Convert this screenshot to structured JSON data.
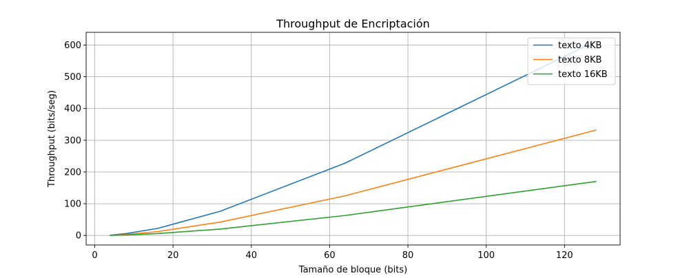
{
  "chart_data": {
    "type": "line",
    "title": "Throughput de Encriptación",
    "xlabel": "Tamaño de bloque (bits)",
    "ylabel": "Throughput (bits/seg)",
    "xlim": [
      -2.2,
      134.2
    ],
    "ylim": [
      -30,
      640
    ],
    "xticks": [
      0,
      20,
      40,
      60,
      80,
      100,
      120
    ],
    "yticks": [
      0,
      100,
      200,
      300,
      400,
      500,
      600
    ],
    "grid": true,
    "legend_position": "top-right",
    "x": [
      4,
      8,
      16,
      32,
      64,
      128
    ],
    "series": [
      {
        "name": "texto 4KB",
        "color": "#1f77b4",
        "values": [
          1,
          6,
          22,
          76,
          228,
          612
        ]
      },
      {
        "name": "texto 8KB",
        "color": "#ff7f0e",
        "values": [
          0.5,
          3,
          12,
          42,
          125,
          332
        ]
      },
      {
        "name": "texto 16KB",
        "color": "#2ca02c",
        "values": [
          0.3,
          1.5,
          6,
          20,
          63,
          170
        ]
      }
    ]
  }
}
